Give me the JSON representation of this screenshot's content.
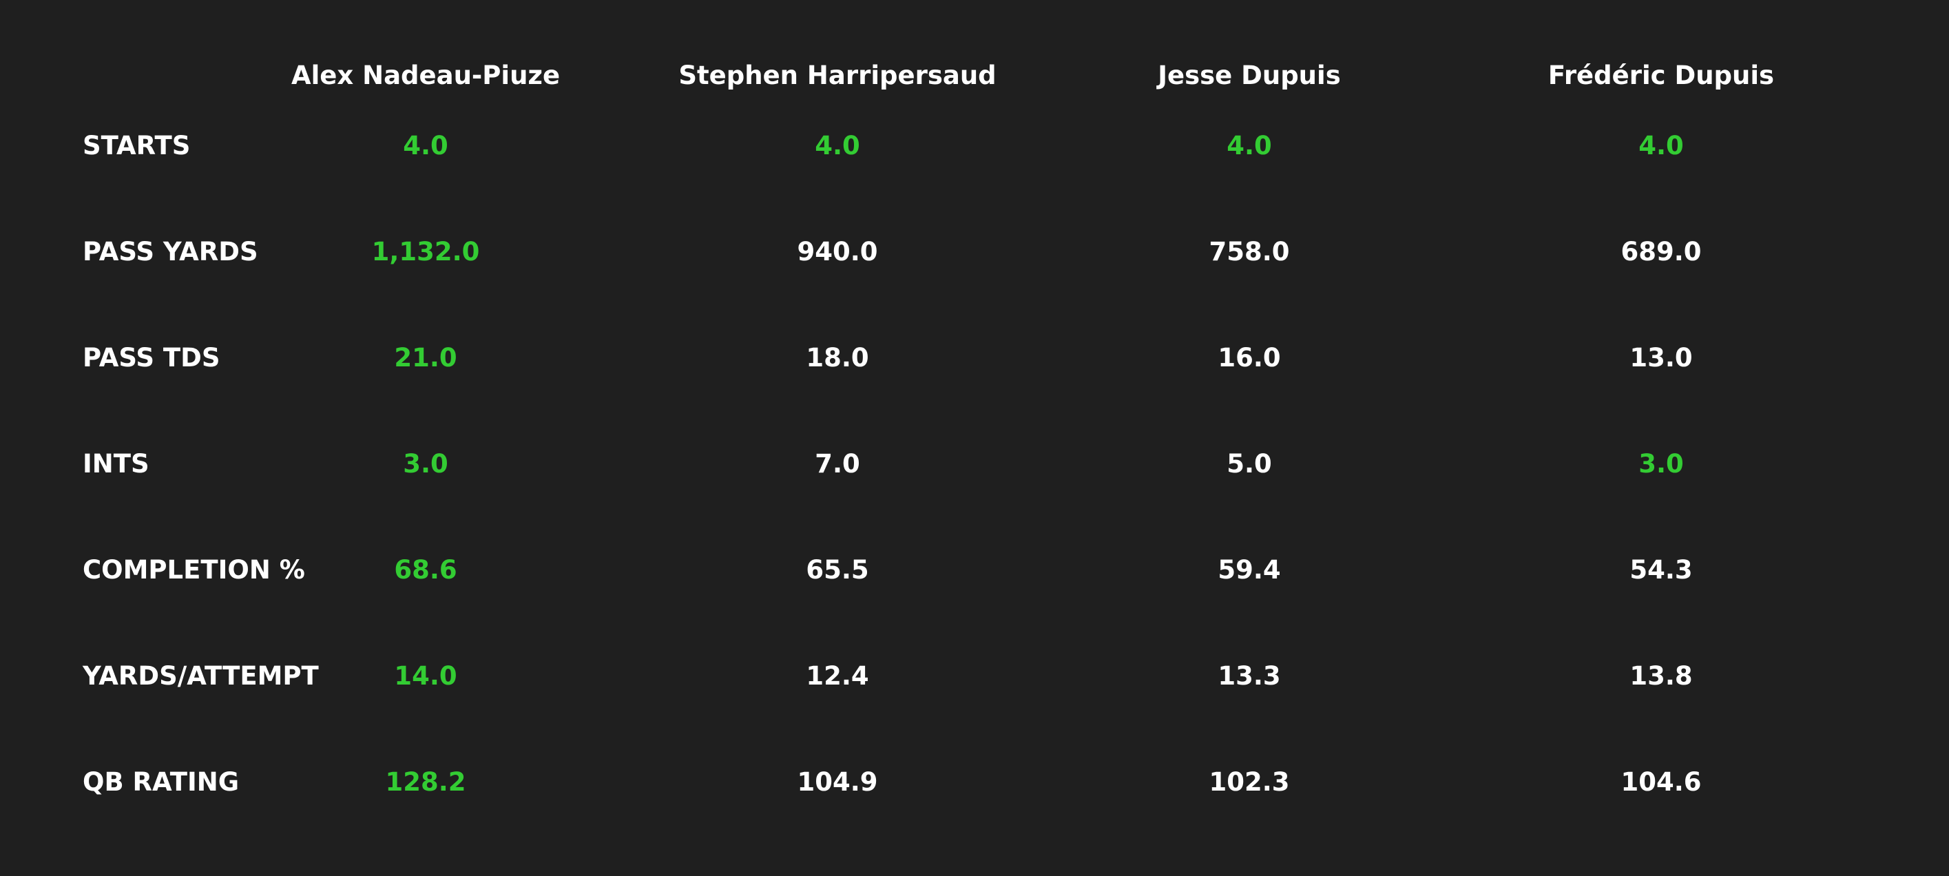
{
  "colors": {
    "background": "#1f1f1f",
    "text": "#ffffff",
    "best": "#33cc33"
  },
  "chart_data": {
    "type": "table",
    "columns": [
      "Alex Nadeau-Piuze",
      "Stephen Harripersaud",
      "Jesse Dupuis",
      "Frédéric Dupuis"
    ],
    "rows": [
      {
        "label": "STARTS",
        "values": [
          "4.0",
          "4.0",
          "4.0",
          "4.0"
        ],
        "best": [
          true,
          true,
          true,
          true
        ]
      },
      {
        "label": "PASS YARDS",
        "values": [
          "1,132.0",
          "940.0",
          "758.0",
          "689.0"
        ],
        "best": [
          true,
          false,
          false,
          false
        ]
      },
      {
        "label": "PASS TDS",
        "values": [
          "21.0",
          "18.0",
          "16.0",
          "13.0"
        ],
        "best": [
          true,
          false,
          false,
          false
        ]
      },
      {
        "label": "INTS",
        "values": [
          "3.0",
          "7.0",
          "5.0",
          "3.0"
        ],
        "best": [
          true,
          false,
          false,
          true
        ]
      },
      {
        "label": "COMPLETION %",
        "values": [
          "68.6",
          "65.5",
          "59.4",
          "54.3"
        ],
        "best": [
          true,
          false,
          false,
          false
        ]
      },
      {
        "label": "YARDS/ATTEMPT",
        "values": [
          "14.0",
          "12.4",
          "13.3",
          "13.8"
        ],
        "best": [
          true,
          false,
          false,
          false
        ]
      },
      {
        "label": "QB RATING",
        "values": [
          "128.2",
          "104.9",
          "102.3",
          "104.6"
        ],
        "best": [
          true,
          false,
          false,
          false
        ]
      }
    ]
  }
}
